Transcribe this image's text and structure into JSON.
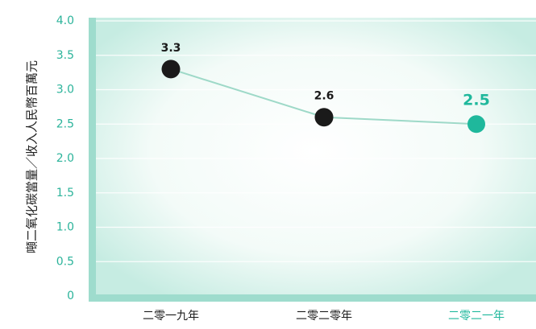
{
  "chart_data": {
    "type": "line",
    "title": "",
    "xlabel": "",
    "ylabel": "噸二氧化碳當量／收入人民幣百萬元",
    "ylim": [
      0,
      4.0
    ],
    "yticks": [
      "0",
      "0.5",
      "1.0",
      "1.5",
      "2.0",
      "2.5",
      "3.0",
      "3.5",
      "4.0"
    ],
    "categories": [
      "二零一九年",
      "二零二零年",
      "二零二一年"
    ],
    "values": [
      3.3,
      2.6,
      2.5
    ],
    "data_labels": [
      "3.3",
      "2.6",
      "2.5"
    ],
    "highlight_index": 2,
    "grid": true
  },
  "colors": {
    "axis_text": "#2bb39a",
    "point_dark": "#1a1a1a",
    "point_highlight": "#1fb89c",
    "line": "#9ed9c8",
    "plot_bg_center": "#ffffff",
    "plot_bg_edge": "#c6ece2",
    "axis_frame": "#9edccd",
    "category_text": "#1a1a1a",
    "category_highlight_text": "#1fb89c"
  }
}
